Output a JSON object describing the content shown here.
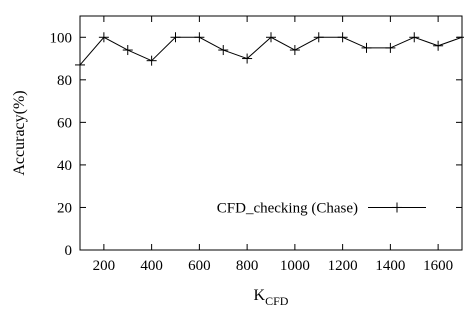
{
  "chart_data": {
    "type": "line",
    "xlabel": "K",
    "xlabel_sub": "CFD",
    "ylabel": "Accuracy(%)",
    "xlim": [
      100,
      1700
    ],
    "ylim": [
      0,
      110
    ],
    "x_ticks": [
      200,
      400,
      600,
      800,
      1000,
      1200,
      1400,
      1600
    ],
    "y_ticks": [
      0,
      20,
      40,
      60,
      80,
      100
    ],
    "grid": false,
    "legend_position": "bottom-right",
    "series": [
      {
        "name": "CFD_checking (Chase)",
        "marker": "plus",
        "color": "#000000",
        "x": [
          100,
          200,
          300,
          400,
          500,
          600,
          700,
          800,
          900,
          1000,
          1100,
          1200,
          1300,
          1400,
          1500,
          1600,
          1700
        ],
        "y": [
          87,
          100,
          94,
          89,
          100,
          100,
          94,
          90,
          100,
          94,
          100,
          100,
          95,
          95,
          100,
          96,
          100
        ]
      }
    ]
  }
}
